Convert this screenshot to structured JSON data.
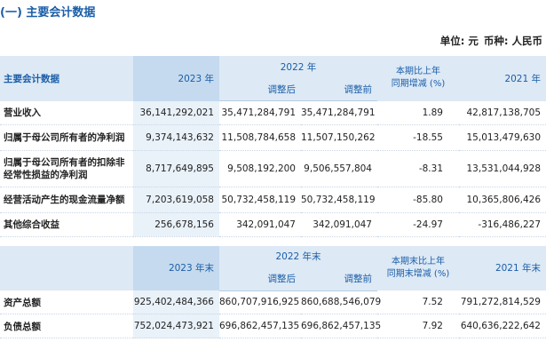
{
  "section_title": "(一) 主要会计数据",
  "unit": {
    "label": "单位: 元",
    "currency": "币种: 人民币"
  },
  "table1": {
    "col_item": "主要会计数据",
    "col_2023": "2023 年",
    "col_2022": "2022 年",
    "col_adjusted": "调整后",
    "col_before": "调整前",
    "col_change_1": "本期比上年",
    "col_change_2": "同期增减 (%)",
    "col_2021": "2021 年",
    "rows": [
      {
        "label": "营业收入",
        "v2023": "36,141,292,021",
        "adj": "35,471,284,791",
        "pre": "35,471,284,791",
        "chg": "1.89",
        "v2021": "42,817,138,705"
      },
      {
        "label": "归属于母公司所有者的净利润",
        "v2023": "9,374,143,632",
        "adj": "11,508,784,658",
        "pre": "11,507,150,262",
        "chg": "-18.55",
        "v2021": "15,013,479,630"
      },
      {
        "label": "归属于母公司所有者的扣除非经常性损益的净利润",
        "v2023": "8,717,649,895",
        "adj": "9,508,192,200",
        "pre": "9,506,557,804",
        "chg": "-8.31",
        "v2021": "13,531,044,928"
      },
      {
        "label": "经营活动产生的现金流量净额",
        "v2023": "7,203,619,058",
        "adj": "50,732,458,119",
        "pre": "50,732,458,119",
        "chg": "-85.80",
        "v2021": "10,365,806,426"
      },
      {
        "label": "其他综合收益",
        "v2023": "256,678,156",
        "adj": "342,091,047",
        "pre": "342,091,047",
        "chg": "-24.97",
        "v2021": "-316,486,227"
      }
    ]
  },
  "table2": {
    "col_2023": "2023 年末",
    "col_2022": "2022 年末",
    "col_adjusted": "调整后",
    "col_before": "调整前",
    "col_change_1": "本期末比上年",
    "col_change_2": "同期末增减 (%)",
    "col_2021": "2021 年末",
    "rows": [
      {
        "label": "资产总额",
        "v2023": "925,402,484,366",
        "adj": "860,707,916,925",
        "pre": "860,688,546,079",
        "chg": "7.52",
        "v2021": "791,272,814,529"
      },
      {
        "label": "负债总额",
        "v2023": "752,024,473,921",
        "adj": "696,862,457,135",
        "pre": "696,862,457,135",
        "chg": "7.92",
        "v2021": "640,636,222,642"
      }
    ]
  }
}
